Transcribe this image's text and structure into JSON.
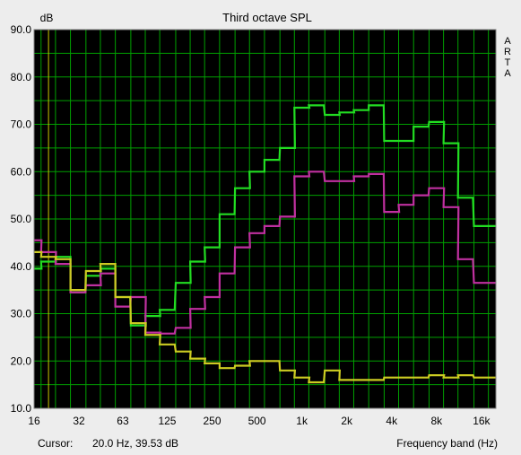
{
  "chart_data": {
    "type": "line",
    "title": "Third octave SPL",
    "ylabel": "dB",
    "xlabel": "Frequency band (Hz)",
    "brand": "ARTA",
    "cursor_label": "Cursor:",
    "cursor_value": "20.0 Hz, 39.53 dB",
    "xscale": "log",
    "xlim": [
      16,
      20000
    ],
    "ylim": [
      10,
      90
    ],
    "grid": true,
    "step_style": true,
    "x_ticks": [
      {
        "value": 16,
        "label": "16"
      },
      {
        "value": 32,
        "label": "32"
      },
      {
        "value": 63,
        "label": "63"
      },
      {
        "value": 125,
        "label": "125"
      },
      {
        "value": 250,
        "label": "250"
      },
      {
        "value": 500,
        "label": "500"
      },
      {
        "value": 1000,
        "label": "1k"
      },
      {
        "value": 2000,
        "label": "2k"
      },
      {
        "value": 4000,
        "label": "4k"
      },
      {
        "value": 8000,
        "label": "8k"
      },
      {
        "value": 16000,
        "label": "16k"
      }
    ],
    "y_ticks": [
      {
        "value": 90,
        "label": "90.0"
      },
      {
        "value": 80,
        "label": "80.0"
      },
      {
        "value": 70,
        "label": "70.0"
      },
      {
        "value": 60,
        "label": "60.0"
      },
      {
        "value": 50,
        "label": "50.0"
      },
      {
        "value": 40,
        "label": "40.0"
      },
      {
        "value": 30,
        "label": "30.0"
      },
      {
        "value": 20,
        "label": "20.0"
      },
      {
        "value": 10,
        "label": "10.0"
      }
    ],
    "bands": [
      16,
      20,
      25,
      31.5,
      40,
      50,
      63,
      80,
      100,
      125,
      160,
      200,
      250,
      315,
      400,
      500,
      630,
      800,
      1000,
      1250,
      1600,
      2000,
      2500,
      3150,
      4000,
      5000,
      6300,
      8000,
      10000,
      12500,
      16000,
      20000
    ],
    "colors": {
      "background": "#000000",
      "grid": "#00a000",
      "frame": "#808080",
      "cursor": "#c8c800"
    },
    "cursor_x": 20,
    "series": [
      {
        "color": "#22dd22",
        "values": [
          39.5,
          41,
          42,
          34.5,
          38,
          39.5,
          33.5,
          27.5,
          29.5,
          30.8,
          36.5,
          41,
          44,
          51,
          56.5,
          60,
          62.5,
          65,
          73.5,
          74,
          72,
          72.5,
          73,
          74,
          66.5,
          66.5,
          69.5,
          70.5,
          66,
          54.5,
          48.5,
          48.5
        ]
      },
      {
        "color": "#c030a0",
        "values": [
          45.5,
          43,
          40.5,
          34.5,
          36,
          38.5,
          31.5,
          33.5,
          26,
          25.8,
          27,
          31,
          33.5,
          38.5,
          44,
          47,
          48.5,
          50.5,
          59,
          60,
          58,
          58,
          59,
          59.5,
          51.5,
          53,
          55,
          56.5,
          52.5,
          41.5,
          36.5,
          36.5
        ]
      },
      {
        "color": "#cccc22",
        "values": [
          43,
          42,
          41.5,
          35,
          39,
          40.5,
          33.5,
          28,
          25.5,
          23.5,
          22,
          20.5,
          19.5,
          18.5,
          19,
          20,
          20,
          18,
          16.5,
          15.5,
          18,
          16,
          16,
          16,
          16.5,
          16.5,
          16.5,
          17,
          16.5,
          17,
          16.5,
          16.5
        ]
      }
    ]
  }
}
